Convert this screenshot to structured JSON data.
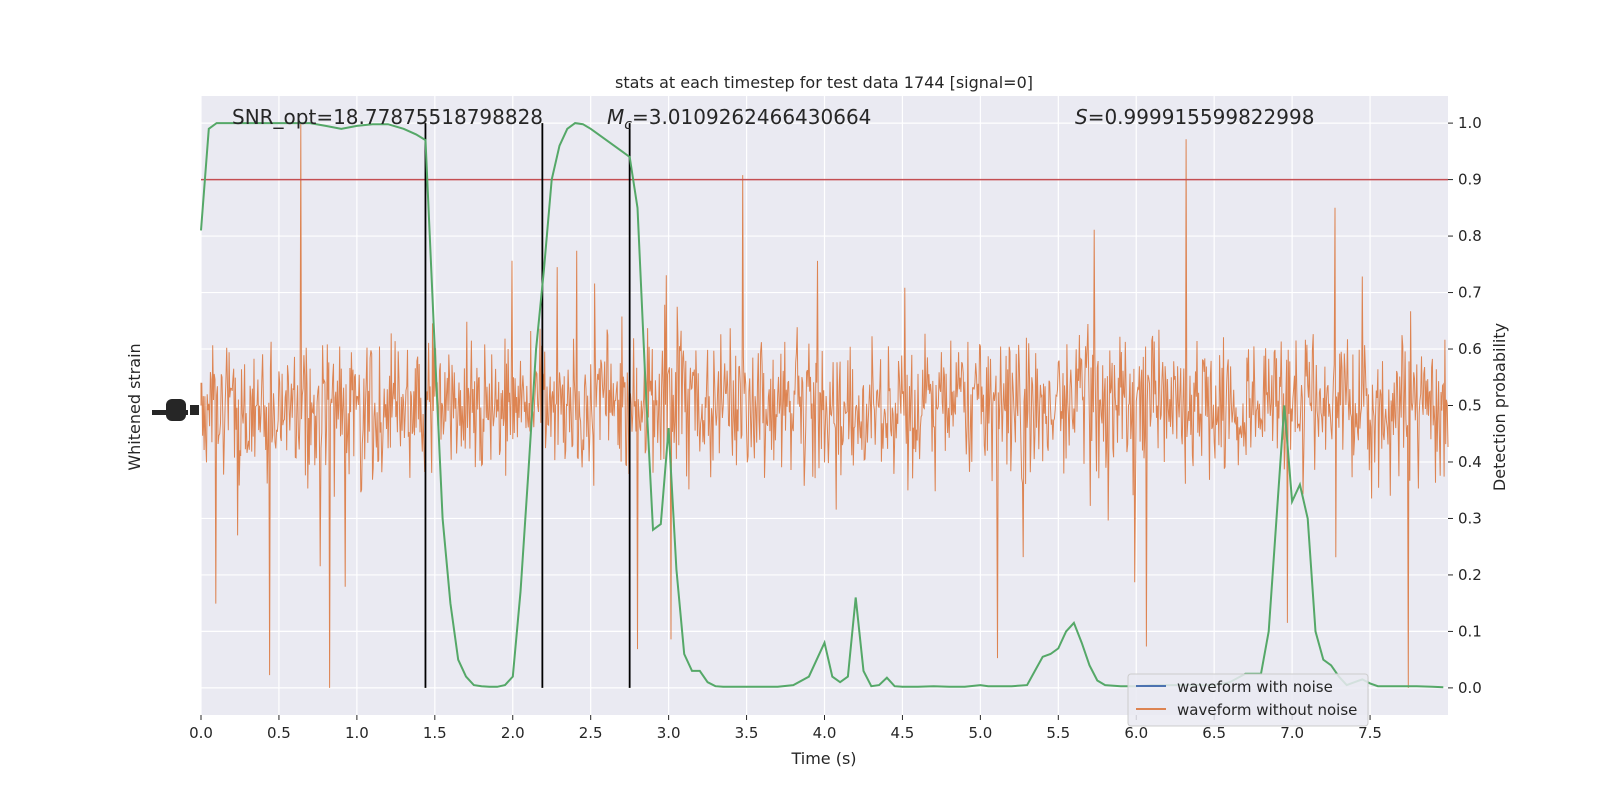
{
  "chart_data": {
    "type": "line",
    "title": "stats at each timestep for test data 1744 [signal=0]",
    "xlabel": "Time (s)",
    "ylabel_left": "Whitened strain",
    "ylabel_right": "Detection probability",
    "xlim": [
      0.0,
      8.0
    ],
    "ylim_right": [
      -0.048,
      1.048
    ],
    "x_ticks": [
      "0.0",
      "0.5",
      "1.0",
      "1.5",
      "2.0",
      "2.5",
      "3.0",
      "3.5",
      "4.0",
      "4.5",
      "5.0",
      "5.5",
      "6.0",
      "6.5",
      "7.0",
      "7.5"
    ],
    "x_tick_values": [
      0.0,
      0.5,
      1.0,
      1.5,
      2.0,
      2.5,
      3.0,
      3.5,
      4.0,
      4.5,
      5.0,
      5.5,
      6.0,
      6.5,
      7.0,
      7.5
    ],
    "y_right_ticks": [
      "0.0",
      "0.1",
      "0.2",
      "0.3",
      "0.4",
      "0.5",
      "0.6",
      "0.7",
      "0.8",
      "0.9",
      "1.0"
    ],
    "y_right_tick_values": [
      0.0,
      0.1,
      0.2,
      0.3,
      0.4,
      0.5,
      0.6,
      0.7,
      0.8,
      0.9,
      1.0
    ],
    "grid": true,
    "legend": {
      "position": "lower-right",
      "entries": [
        {
          "name": "waveform with noise",
          "color": "#4c72b0"
        },
        {
          "name": "waveform without noise",
          "color": "#dd8452"
        }
      ]
    },
    "annotations": {
      "snr": "SNR_opt=18.77875518798828",
      "mc_symbol": "M",
      "mc_sub": "c",
      "mc_value": "=3.0109262466430664",
      "s_symbol": "S",
      "s_value": "=0.999915599822998"
    },
    "threshold": 0.9,
    "vertical_lines_x": [
      1.44,
      2.19,
      2.75
    ],
    "series": [
      {
        "name": "Detection probability",
        "color": "#55a868",
        "x": [
          0.0,
          0.05,
          0.1,
          0.2,
          0.3,
          0.4,
          0.5,
          0.6,
          0.7,
          0.8,
          0.9,
          1.0,
          1.1,
          1.2,
          1.3,
          1.38,
          1.44,
          1.5,
          1.55,
          1.6,
          1.65,
          1.7,
          1.75,
          1.8,
          1.85,
          1.9,
          1.95,
          2.0,
          2.05,
          2.1,
          2.15,
          2.2,
          2.25,
          2.3,
          2.35,
          2.4,
          2.45,
          2.5,
          2.55,
          2.6,
          2.65,
          2.7,
          2.75,
          2.8,
          2.85,
          2.9,
          2.95,
          3.0,
          3.05,
          3.1,
          3.15,
          3.2,
          3.25,
          3.3,
          3.35,
          3.4,
          3.5,
          3.6,
          3.7,
          3.8,
          3.9,
          4.0,
          4.05,
          4.1,
          4.15,
          4.2,
          4.25,
          4.3,
          4.35,
          4.4,
          4.45,
          4.5,
          4.55,
          4.6,
          4.7,
          4.8,
          4.9,
          5.0,
          5.05,
          5.1,
          5.2,
          5.3,
          5.35,
          5.4,
          5.45,
          5.5,
          5.55,
          5.6,
          5.65,
          5.7,
          5.75,
          5.8,
          5.9,
          6.0,
          6.1,
          6.2,
          6.3,
          6.4,
          6.5,
          6.6,
          6.7,
          6.8,
          6.85,
          6.9,
          6.95,
          7.0,
          7.05,
          7.1,
          7.15,
          7.2,
          7.25,
          7.3,
          7.35,
          7.4,
          7.45,
          7.5,
          7.55,
          7.6,
          7.7,
          7.8,
          7.9,
          7.97
        ],
        "y": [
          0.81,
          0.99,
          1.0,
          1.0,
          1.0,
          1.0,
          1.0,
          1.0,
          1.0,
          0.995,
          0.99,
          0.995,
          0.998,
          0.998,
          0.99,
          0.98,
          0.97,
          0.6,
          0.3,
          0.15,
          0.05,
          0.02,
          0.005,
          0.003,
          0.002,
          0.002,
          0.005,
          0.02,
          0.17,
          0.38,
          0.6,
          0.74,
          0.9,
          0.96,
          0.99,
          1.0,
          0.998,
          0.99,
          0.98,
          0.97,
          0.96,
          0.95,
          0.94,
          0.85,
          0.55,
          0.28,
          0.29,
          0.46,
          0.21,
          0.06,
          0.03,
          0.03,
          0.01,
          0.003,
          0.002,
          0.002,
          0.002,
          0.002,
          0.002,
          0.005,
          0.02,
          0.08,
          0.02,
          0.01,
          0.02,
          0.16,
          0.03,
          0.003,
          0.005,
          0.018,
          0.003,
          0.002,
          0.002,
          0.002,
          0.003,
          0.002,
          0.002,
          0.005,
          0.003,
          0.003,
          0.003,
          0.005,
          0.03,
          0.055,
          0.06,
          0.07,
          0.1,
          0.115,
          0.08,
          0.04,
          0.013,
          0.005,
          0.003,
          0.003,
          0.005,
          0.005,
          0.005,
          0.005,
          0.005,
          0.01,
          0.025,
          0.025,
          0.1,
          0.3,
          0.5,
          0.33,
          0.36,
          0.3,
          0.1,
          0.05,
          0.04,
          0.02,
          0.005,
          0.01,
          0.015,
          0.008,
          0.003,
          0.003,
          0.003,
          0.003,
          0.002,
          0.001
        ]
      }
    ]
  }
}
